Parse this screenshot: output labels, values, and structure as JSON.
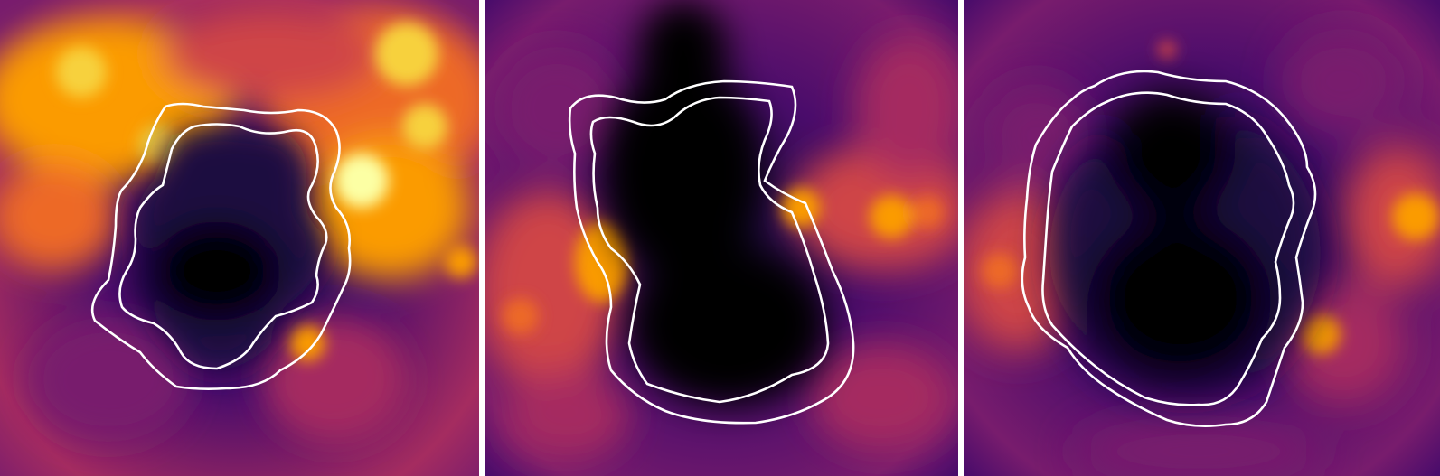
{
  "figure": {
    "description_colors": {
      "background": "#ffffff",
      "colormap": [
        "#000004",
        "#1b0c41",
        "#4a0c6b",
        "#781c6d",
        "#a52c60",
        "#cf4446",
        "#ed6925",
        "#fb9b06",
        "#f7d13d",
        "#fcffa4"
      ],
      "contour": "#ffffff"
    },
    "panels": [
      {
        "id": "panel-1",
        "contour_count": 2
      },
      {
        "id": "panel-2",
        "contour_count": 2
      },
      {
        "id": "panel-3",
        "contour_count": 2
      }
    ]
  }
}
